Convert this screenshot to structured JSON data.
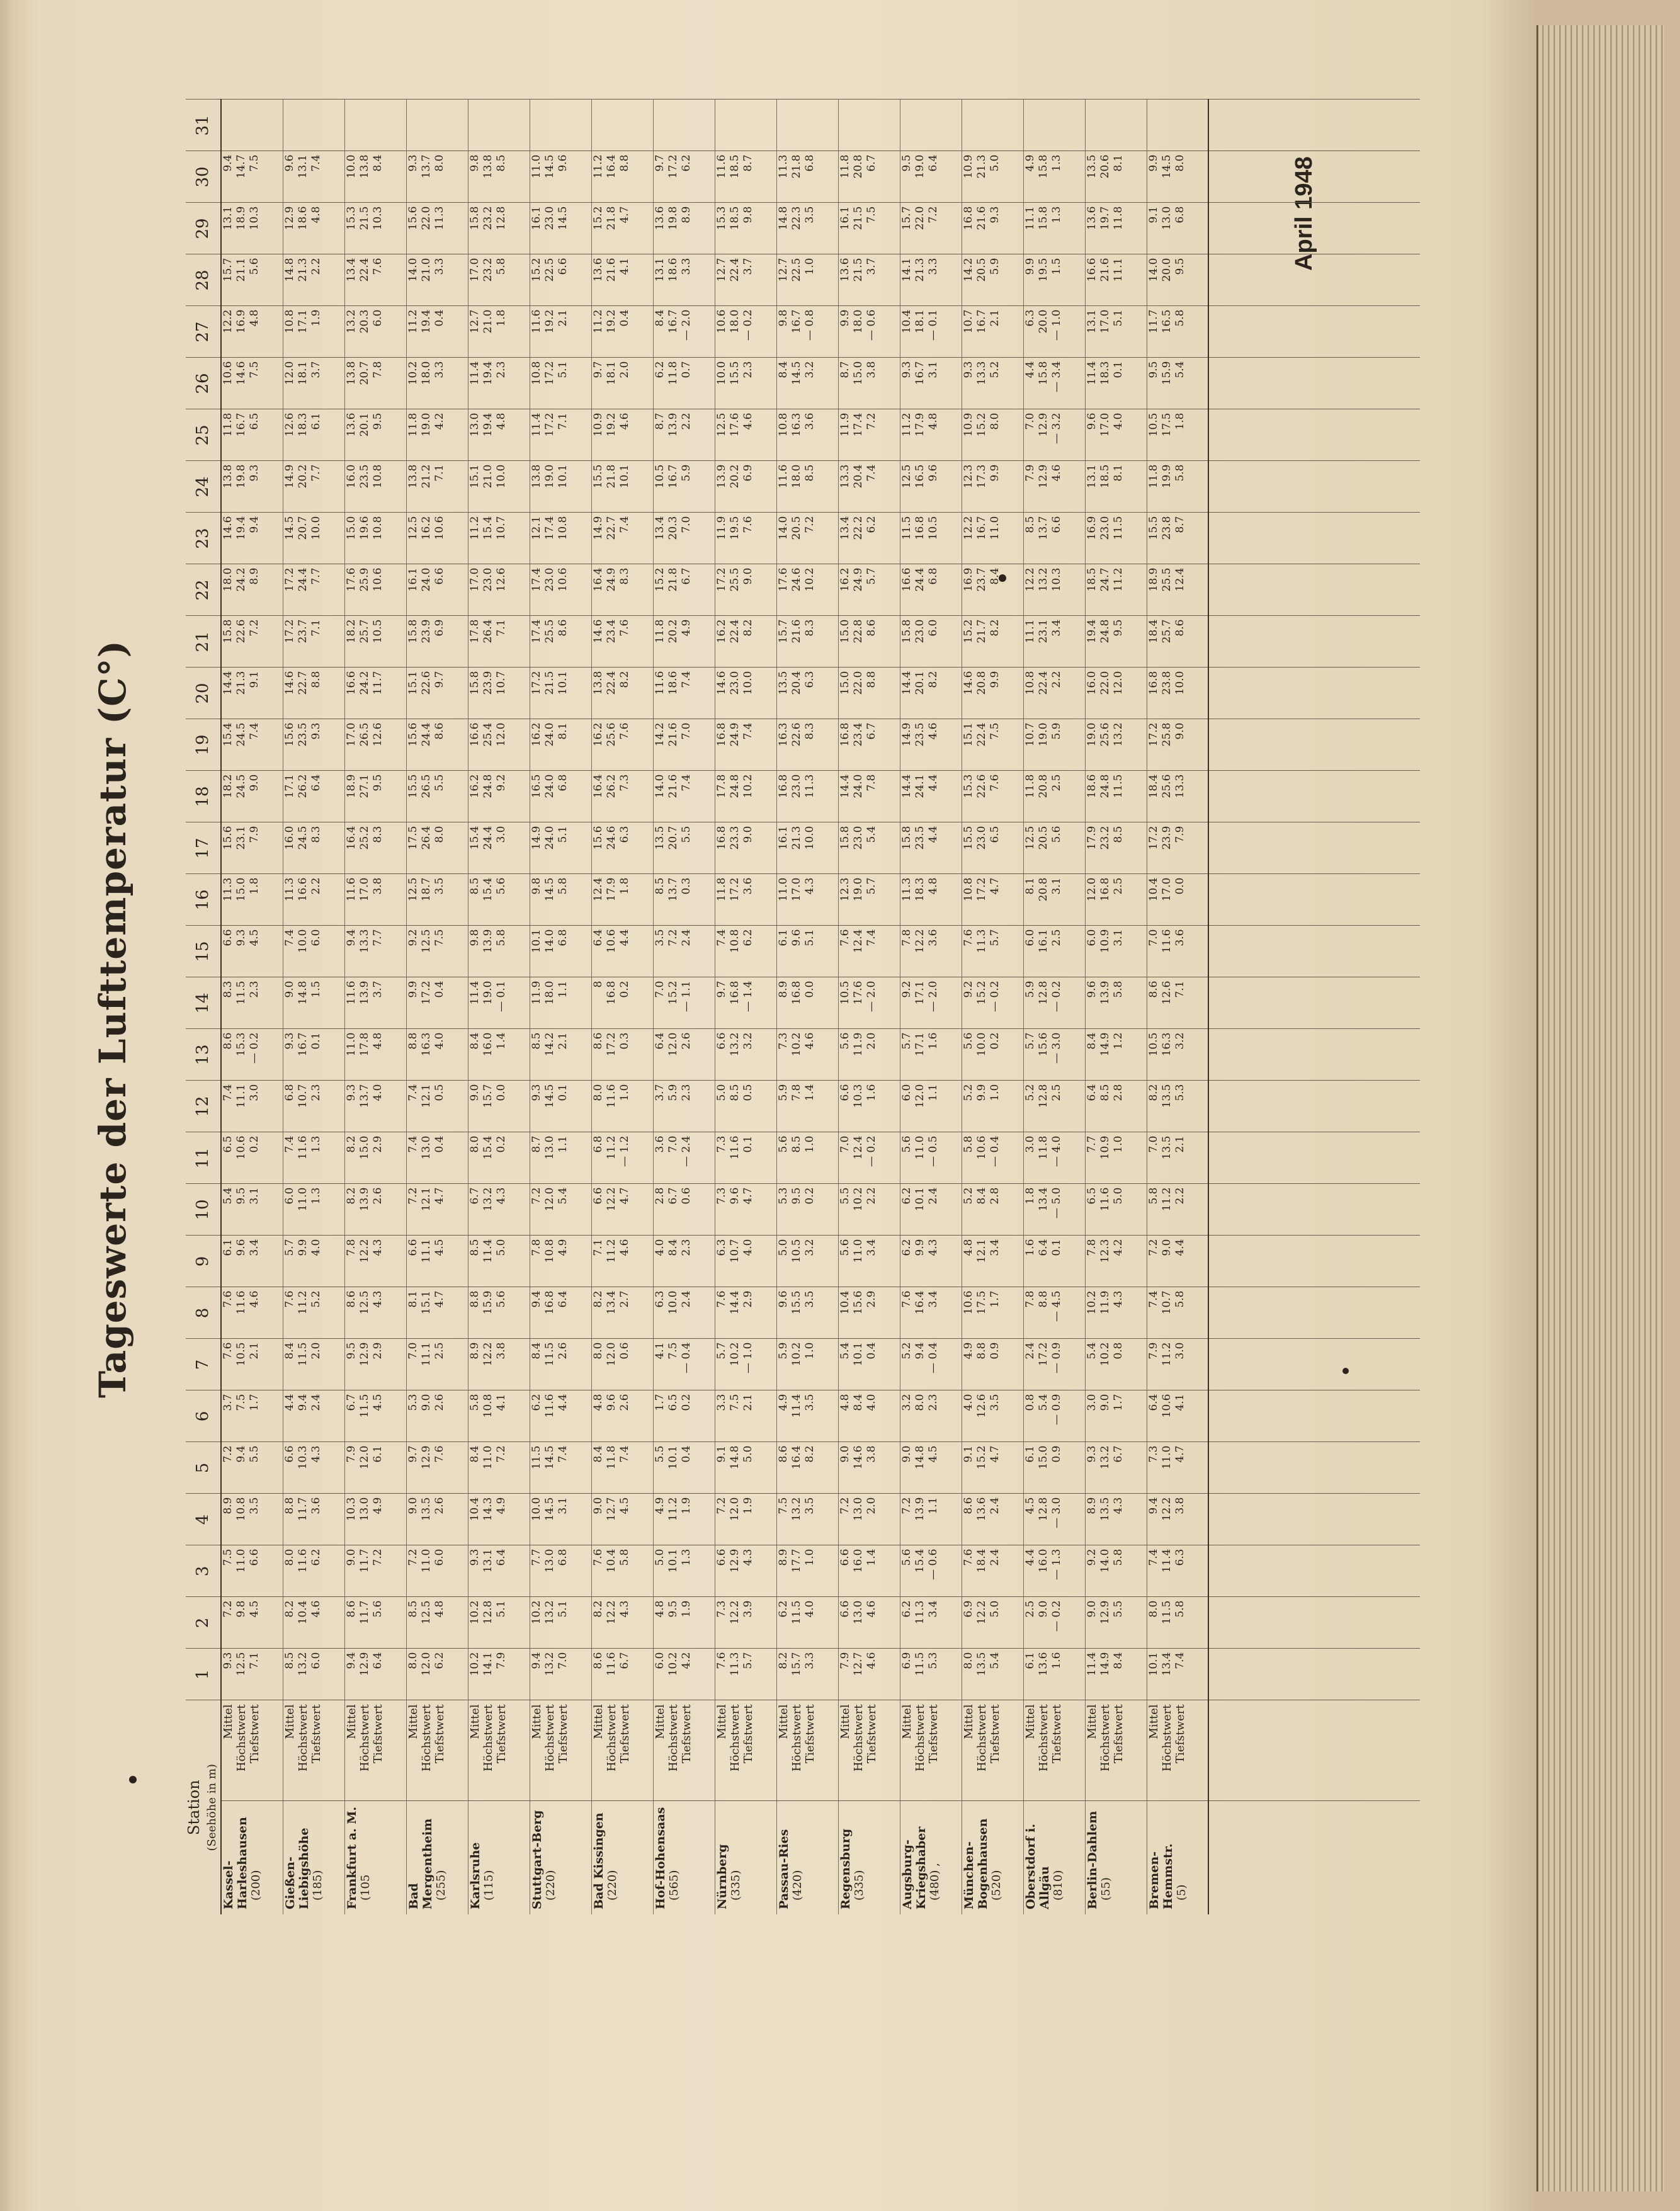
{
  "title": "Tageswerte der Lufttemperatur (C°)",
  "date_label": "April 1948",
  "header": {
    "station_label": "Station",
    "station_sub": "(Seehöhe in m)",
    "days": [
      "1",
      "2",
      "3",
      "4",
      "5",
      "6",
      "7",
      "8",
      "9",
      "10",
      "11",
      "12",
      "13",
      "14",
      "15",
      "16",
      "17",
      "18",
      "19",
      "20",
      "21",
      "22",
      "23",
      "24",
      "25",
      "26",
      "27",
      "28",
      "29",
      "30",
      "31"
    ]
  },
  "stations": [
    {
      "name": "Kassel-\nHarleshausen",
      "height": "(200)",
      "labels": [
        "Mittel",
        "Höchstwert",
        "Tiefstwert"
      ],
      "days": [
        "9.3\n12.5\n7.1",
        "7.2\n9.8\n4.5",
        "7.5\n11.0\n6.6",
        "8.9\n10.8\n3.5",
        "7.2\n9.4\n5.5",
        "3.7\n7.5\n1.7",
        "7.6\n10.5\n2.1",
        "7.6\n11.6\n4.6",
        "6.1\n9.6\n3.4",
        "5.4\n9.5\n3.1",
        "6.5\n10.6\n0.2",
        "7.4\n11.1\n3.0",
        "8.6\n15.3\n— 0.2",
        "8.3\n11.5\n2.3",
        "6.6\n9.3\n4.5",
        "11.3\n15.0\n1.8",
        "15.6\n23.1\n7.9",
        "18.2\n24.5\n9.0",
        "15.4\n24.5\n7.4",
        "14.4\n21.3\n9.1",
        "15.8\n22.6\n7.2",
        "18.0\n24.2\n8.9",
        "14.6\n19.4\n9.4",
        "13.8\n19.8\n9.3",
        "11.8\n16.7\n6.5",
        "10.6\n14.6\n7.5",
        "12.2\n16.9\n4.8",
        "15.7\n21.1\n5.6",
        "13.1\n18.9\n10.3",
        "9.4\n14.7\n7.5",
        ""
      ]
    },
    {
      "name": "Gießen-\nLiebigshöhe",
      "height": "(185)",
      "labels": [
        "Mittel",
        "Höchstwert",
        "Tiefstwert"
      ],
      "days": [
        "8.5\n13.2\n6.0",
        "8.2\n10.4\n4.6",
        "8.0\n11.6\n6.2",
        "8.8\n11.7\n3.6",
        "6.6\n10.3\n4.3",
        "4.4\n9.4\n2.4",
        "8.4\n11.5\n2.0",
        "7.6\n11.2\n5.2",
        "5.7\n9.9\n4.0",
        "6.0\n11.0\n1.3",
        "7.4\n11.6\n1.3",
        "6.8\n10.7\n2.3",
        "9.3\n16.7\n0.1",
        "9.0\n14.8\n1.5",
        "7.4\n10.0\n6.0",
        "11.3\n16.6\n2.2",
        "16.0\n24.5\n8.3",
        "17.1\n26.2\n6.4",
        "15.6\n23.5\n9.3",
        "14.6\n22.7\n8.8",
        "17.2\n23.7\n7.1",
        "17.2\n24.4\n7.7",
        "14.5\n20.7\n10.0",
        "14.9\n20.2\n7.7",
        "12.6\n18.3\n6.1",
        "12.0\n18.1\n3.7",
        "10.8\n17.1\n1.9",
        "14.8\n21.3\n2.2",
        "12.9\n18.6\n4.8",
        "9.6\n13.1\n7.4",
        ""
      ]
    },
    {
      "name": "Frankfurt a. M.",
      "height": "(105",
      "labels": [
        "Mittel",
        "Höchstwert",
        "Tiefstwert"
      ],
      "days": [
        "9.4\n12.9\n6.4",
        "8.6\n11.7\n5.6",
        "9.0\n11.7\n7.2",
        "10.3\n13.0\n4.9",
        "7.9\n12.0\n6.1",
        "6.7\n11.5\n4.5",
        "9.5\n12.9\n2.9",
        "8.6\n12.5\n4.3",
        "7.8\n12.2\n4.3",
        "8.2\n13.9\n2.6",
        "8.2\n15.0\n2.9",
        "9.3\n13.7\n4.0",
        "11.0\n17.8\n4.8",
        "11.6\n13.9\n3.7",
        "9.4\n13.3\n7.7",
        "11.6\n17.0\n3.8",
        "16.4\n25.2\n8.3",
        "18.9\n27.1\n9.5",
        "17.0\n26.5\n12.6",
        "16.6\n24.2\n11.7",
        "18.2\n25.7\n10.5",
        "17.6\n25.9\n10.6",
        "15.0\n19.6\n10.8",
        "16.0\n23.5\n10.8",
        "13.6\n20.1\n9.5",
        "13.8\n20.7\n7.8",
        "13.2\n20.3\n6.0",
        "13.4\n22.4\n7.6",
        "15.3\n21.5\n10.3",
        "10.0\n13.8\n8.4",
        ""
      ]
    },
    {
      "name": "Bad Mergentheim",
      "height": "(255)",
      "labels": [
        "Mittel",
        "Höchstwert",
        "Tiefstwert"
      ],
      "days": [
        "8.0\n12.0\n6.2",
        "8.5\n12.5\n4.8",
        "7.2\n11.0\n6.0",
        "9.0\n13.5\n2.6",
        "9.7\n12.9\n7.6",
        "5.3\n9.0\n2.6",
        "7.0\n11.1\n2.5",
        "8.1\n15.1\n4.7",
        "6.6\n11.1\n4.5",
        "7.2\n12.1\n4.7",
        "7.4\n13.0\n0.4",
        "7.4\n12.1\n0.5",
        "8.8\n16.3\n4.0",
        "9.9\n17.2\n0.4",
        "9.2\n12.5\n7.5",
        "12.5\n18.7\n3.5",
        "17.5\n26.4\n8.0",
        "15.5\n26.5\n5.5",
        "15.6\n24.4\n8.6",
        "15.1\n22.6\n9.7",
        "15.8\n23.9\n6.9",
        "16.1\n24.0\n6.6",
        "12.5\n16.2\n10.6",
        "13.8\n21.2\n7.1",
        "11.8\n19.0\n4.2",
        "10.2\n18.0\n3.3",
        "11.2\n19.4\n0.4",
        "14.0\n21.0\n3.3",
        "15.6\n22.0\n11.3",
        "9.3\n13.7\n8.0",
        ""
      ]
    },
    {
      "name": "Karlsruhe",
      "height": "(115)",
      "labels": [
        "Mittel",
        "Höchstwert",
        "Tiefstwert"
      ],
      "days": [
        "10.2\n14.1\n7.9",
        "10.2\n12.8\n5.1",
        "9.3\n13.1\n6.4",
        "10.4\n14.3\n4.9",
        "8.4\n11.0\n7.2",
        "5.8\n10.8\n4.1",
        "8.9\n12.2\n3.8",
        "8.8\n15.9\n5.6",
        "8.5\n11.4\n5.0",
        "6.7\n13.2\n4.3",
        "8.0\n15.4\n0.2",
        "9.0\n15.7\n0.0",
        "8.4\n16.0\n1.4",
        "11.4\n19.0\n— 0.1",
        "9.8\n13.9\n5.8",
        "8.5\n15.4\n5.6",
        "15.4\n24.4\n3.0",
        "16.2\n24.8\n9.2",
        "16.6\n25.4\n12.0",
        "15.8\n23.9\n10.7",
        "17.8\n26.4\n7.1",
        "17.0\n23.0\n12.6",
        "11.2\n15.4\n10.7",
        "15.1\n21.0\n10.0",
        "13.0\n19.4\n4.8",
        "11.4\n19.4\n2.3",
        "12.7\n21.0\n1.8",
        "17.0\n23.2\n5.8",
        "15.8\n23.2\n12.8",
        "9.8\n13.8\n8.5",
        ""
      ]
    },
    {
      "name": "Stuttgart-Berg",
      "height": "(220)",
      "labels": [
        "Mittel",
        "Höchstwert",
        "Tiefstwert"
      ],
      "days": [
        "9.4\n13.2\n7.0",
        "10.2\n13.2\n5.1",
        "7.7\n13.0\n6.8",
        "10.0\n14.5\n3.1",
        "11.5\n14.5\n7.4",
        "6.2\n11.6\n4.4",
        "8.4\n11.5\n2.6",
        "9.4\n16.8\n6.4",
        "7.8\n10.8\n4.9",
        "7.2\n12.0\n5.4",
        "8.7\n13.0\n1.1",
        "9.3\n14.5\n0.1",
        "8.5\n14.2\n2.1",
        "11.9\n18.0\n1.1",
        "10.1\n14.0\n6.8",
        "9.8\n14.5\n5.8",
        "14.9\n24.0\n5.1",
        "16.5\n24.0\n6.8",
        "16.2\n24.0\n8.1",
        "17.2\n21.5\n10.1",
        "17.4\n25.5\n8.6",
        "17.4\n23.0\n10.6",
        "12.1\n17.4\n10.8",
        "13.8\n19.0\n10.1",
        "11.4\n17.2\n7.1",
        "10.8\n17.2\n5.1",
        "11.6\n19.2\n2.1",
        "15.2\n22.5\n6.6",
        "16.1\n23.0\n14.5",
        "11.0\n14.5\n9.6",
        ""
      ]
    },
    {
      "name": "Bad Kissingen",
      "height": "(220)",
      "labels": [
        "Mittel",
        "Höchstwert",
        "Tiefstwert"
      ],
      "days": [
        "8.6\n11.6\n6.7",
        "8.2\n12.2\n4.3",
        "7.6\n10.4\n5.8",
        "9.0\n12.7\n4.5",
        "8.4\n11.8\n7.4",
        "4.8\n9.6\n2.6",
        "8.0\n12.0\n0.6",
        "8.2\n13.4\n2.7",
        "7.1\n11.2\n4.6",
        "6.6\n12.2\n4.7",
        "6.8\n11.2\n— 1.2",
        "8.0\n11.6\n1.0",
        "8.6\n17.2\n0.3",
        "8\n16.8\n0.2",
        "6.4\n10.6\n4.4",
        "12.4\n17.9\n1.8",
        "15.6\n24.6\n6.3",
        "16.4\n26.2\n7.3",
        "16.2\n25.6\n7.6",
        "13.8\n22.4\n8.2",
        "14.6\n23.4\n7.6",
        "16.4\n24.9\n8.3",
        "14.9\n22.7\n7.4",
        "15.5\n21.8\n10.1",
        "10.9\n19.2\n4.6",
        "9.7\n18.1\n2.0",
        "11.2\n19.2\n0.4",
        "13.6\n21.6\n4.1",
        "15.2\n21.8\n4.7",
        "11.2\n16.4\n8.8",
        ""
      ]
    },
    {
      "name": "Hof-Hohensaas",
      "height": "(565)",
      "labels": [
        "Mittel",
        "Höchstwert",
        "Tiefstwert"
      ],
      "days": [
        "6.0\n10.2\n4.2",
        "4.8\n9.5\n1.9",
        "5.0\n10.1\n1.3",
        "4.9\n11.2\n1.9",
        "5.5\n10.1\n0.4",
        "1.7\n6.5\n0.2",
        "4.1\n7.5\n— 0.4",
        "6.3\n10.0\n2.4",
        "4.0\n8.4\n2.3",
        "2.8\n6.7\n0.6",
        "3.6\n7.0\n— 2.4",
        "3.7\n5.9\n2.3",
        "6.4\n12.0\n2.6",
        "7.0\n15.2\n— 1.1",
        "3.5\n7.2\n2.4",
        "8.5\n13.7\n0.3",
        "13.5\n20.7\n5.5",
        "14.0\n21.6\n7.4",
        "14.2\n21.6\n7.0",
        "11.6\n18.6\n7.4",
        "11.8\n20.2\n4.9",
        "15.2\n21.8\n6.7",
        "13.4\n20.3\n7.0",
        "10.5\n16.7\n5.9",
        "8.7\n13.9\n2.2",
        "6.2\n11.8\n0.7",
        "8.4\n16.7\n— 2.0",
        "13.1\n18.6\n3.3",
        "13.6\n19.8\n8.9",
        "9.7\n17.2\n6.2",
        ""
      ]
    },
    {
      "name": "Nürnberg",
      "height": "(335)",
      "labels": [
        "Mittel",
        "Höchstwert",
        "Tiefstwert"
      ],
      "days": [
        "7.6\n11.3\n5.7",
        "7.3\n12.2\n3.9",
        "6.6\n12.9\n4.3",
        "7.2\n12.0\n1.9",
        "9.1\n14.8\n5.0",
        "3.3\n7.5\n2.1",
        "5.7\n10.2\n— 1.0",
        "7.6\n14.4\n2.9",
        "6.3\n10.7\n4.0",
        "7.3\n9.6\n4.7",
        "7.3\n11.6\n0.1",
        "5.0\n8.5\n0.5",
        "6.6\n13.2\n3.2",
        "9.7\n16.8\n— 1.4",
        "7.4\n10.8\n6.2",
        "11.8\n17.2\n3.6",
        "16.8\n23.3\n9.0",
        "17.8\n24.8\n10.2",
        "16.8\n24.9\n7.4",
        "14.6\n23.0\n10.0",
        "16.2\n22.4\n8.2",
        "17.2\n25.5\n9.0",
        "11.9\n19.5\n7.6",
        "13.9\n20.2\n6.9",
        "12.5\n17.6\n4.6",
        "10.0\n15.5\n2.3",
        "10.6\n18.0\n— 0.2",
        "12.7\n22.4\n3.7",
        "15.3\n18.5\n9.8",
        "11.6\n18.5\n8.7",
        ""
      ]
    },
    {
      "name": "Passau-Ries",
      "height": "(420)",
      "labels": [
        "Mittel",
        "Höchstwert",
        "Tiefstwert"
      ],
      "days": [
        "8.2\n15.7\n3.3",
        "6.2\n11.5\n4.0",
        "8.9\n17.7\n1.0",
        "7.5\n13.2\n3.5",
        "8.6\n16.4\n8.2",
        "4.9\n11.4\n3.5",
        "5.9\n10.2\n1.0",
        "9.6\n15.5\n3.5",
        "5.0\n10.5\n3.2",
        "5.3\n9.5\n0.2",
        "5.6\n8.5\n1.0",
        "5.9\n7.8\n1.4",
        "7.3\n10.2\n4.6",
        "8.9\n16.8\n0.0",
        "6.1\n9.6\n5.1",
        "11.0\n17.0\n4.3",
        "16.1\n21.3\n10.0",
        "16.8\n23.0\n11.3",
        "16.3\n22.6\n8.3",
        "13.5\n20.4\n6.3",
        "15.7\n21.6\n8.3",
        "17.6\n24.6\n10.2",
        "14.0\n20.5\n7.2",
        "11.6\n18.0\n8.5",
        "10.8\n16.3\n3.6",
        "8.4\n14.5\n3.2",
        "9.8\n16.7\n— 0.8",
        "12.7\n22.5\n1.0",
        "14.8\n22.3\n3.5",
        "11.3\n21.8\n6.8",
        ""
      ]
    },
    {
      "name": "Regensburg",
      "height": "(335)",
      "labels": [
        "Mittel",
        "Höchstwert",
        "Tiefstwert"
      ],
      "days": [
        "7.9\n12.7\n4.6",
        "6.6\n13.0\n4.6",
        "6.6\n16.0\n1.4",
        "7.2\n13.0\n2.0",
        "9.0\n14.6\n3.8",
        "4.8\n8.4\n4.0",
        "5.4\n10.1\n0.4",
        "10.4\n15.6\n2.9",
        "5.6\n11.0\n3.4",
        "5.5\n10.2\n2.2",
        "7.0\n12.4\n— 0.2",
        "6.6\n10.3\n1.6",
        "5.6\n11.9\n2.0",
        "10.5\n17.6\n— 2.0",
        "7.6\n12.4\n7.4",
        "12.3\n19.0\n5.7",
        "15.8\n23.0\n5.4",
        "14.4\n24.0\n7.8",
        "16.8\n23.4\n6.7",
        "15.0\n22.0\n8.8",
        "15.0\n22.8\n8.6",
        "16.2\n24.9\n5.7",
        "13.4\n22.2\n6.2",
        "13.3\n20.4\n7.4",
        "11.9\n17.4\n7.2",
        "8.7\n15.0\n3.8",
        "9.9\n18.0\n— 0.6",
        "13.6\n21.5\n3.7",
        "16.1\n21.5\n7.5",
        "11.8\n20.8\n6.7",
        ""
      ]
    },
    {
      "name": "Augsburg-\nKriegshaber",
      "height": "(480) ,",
      "labels": [
        "Mittel",
        "Höchstwert",
        "Tiefstwert"
      ],
      "days": [
        "6.9\n11.5\n5.3",
        "6.2\n11.3\n3.4",
        "5.6\n15.4\n— 0.6",
        "7.2\n13.9\n1.1",
        "9.0\n14.8\n4.5",
        "3.2\n8.0\n2.3",
        "5.2\n9.4\n— 0.4",
        "7.6\n16.4\n3.4",
        "6.2\n9.9\n4.3",
        "6.2\n10.1\n2.4",
        "5.6\n11.0\n— 0.5",
        "6.0\n12.0\n1.1",
        "5.7\n17.1\n1.6",
        "9.2\n17.1\n— 2.0",
        "7.8\n12.2\n3.6",
        "11.3\n18.3\n4.8",
        "15.8\n23.5\n4.4",
        "14.4\n24.1\n4.4",
        "14.9\n23.5\n4.6",
        "14.4\n20.1\n8.2",
        "15.8\n23.0\n6.0",
        "16.6\n24.4\n6.8",
        "11.5\n16.8\n10.5",
        "12.5\n16.5\n9.6",
        "11.2\n17.9\n4.8",
        "9.3\n16.7\n3.1",
        "10.4\n18.1\n— 0.1",
        "14.1\n21.3\n3.3",
        "15.7\n22.0\n7.2",
        "9.5\n19.0\n6.4",
        ""
      ]
    },
    {
      "name": "München-\nBogenhausen",
      "height": "(520)",
      "labels": [
        "Mittel",
        "Höchstwert",
        "Tiefstwert"
      ],
      "days": [
        "8.0\n13.5\n5.4",
        "6.9\n12.2\n5.0",
        "7.6\n18.4\n2.4",
        "8.6\n13.6\n2.4",
        "9.1\n15.2\n4.7",
        "4.0\n12.6\n3.5",
        "4.9\n8.8\n0.9",
        "10.6\n17.5\n1.7",
        "4.8\n12.1\n3.4",
        "5.2\n8.4\n2.8",
        "5.8\n10.6\n— 0.4",
        "5.2\n9.9\n1.0",
        "5.6\n10.0\n0.2",
        "9.2\n15.2\n— 0.2",
        "7.6\n11.3\n5.7",
        "10.8\n17.2\n4.7",
        "15.5\n23.0\n6.5",
        "15.3\n22.6\n7.6",
        "15.1\n22.4\n7.5",
        "14.6\n20.8\n9.9",
        "15.2\n21.7\n8.2",
        "16.9\n23.7\n8.4",
        "12.2\n16.7\n11.0",
        "12.3\n17.3\n9.9",
        "10.9\n15.2\n8.0",
        "9.3\n13.3\n5.2",
        "10.7\n16.7\n2.1",
        "14.2\n20.5\n5.9",
        "16.8\n21.6\n9.3",
        "10.9\n21.3\n5.0",
        ""
      ]
    },
    {
      "name": "Oberstdorf i. Allgäu",
      "height": "(810)",
      "labels": [
        "Mittel",
        "Höchstwert",
        "Tiefstwert"
      ],
      "days": [
        "6.1\n13.6\n1.6",
        "2.5\n9.0\n— 0.2",
        "4.4\n16.0\n— 1.3",
        "4.5\n12.8\n— 3.0",
        "6.1\n15.0\n0.9",
        "0.8\n5.4\n— 0.9",
        "2.4\n17.2\n— 0.9",
        "7.8\n8.8\n— 4.5",
        "1.6\n6.4\n0.1",
        "1.8\n13.4\n— 5.0",
        "3.0\n11.8\n— 4.0",
        "5.2\n12.8\n2.5",
        "5.7\n15.6\n— 3.0",
        "5.9\n12.8\n— 0.2",
        "6.0\n16.1\n2.5",
        "8.1\n20.8\n3.1",
        "12.5\n20.5\n5.6",
        "11.8\n20.8\n2.5",
        "10.7\n19.0\n5.9",
        "10.8\n22.4\n2.2",
        "11.1\n23.1\n3.4",
        "12.2\n13.2\n10.3",
        "8.5\n13.7\n6.6",
        "7.9\n12.9\n4.6",
        "7.0\n12.9\n— 3.2",
        "4.4\n15.8\n— 3.4",
        "6.3\n20.0\n— 1.0",
        "9.9\n19.5\n1.5",
        "11.1\n15.8\n1.3",
        "4.9\n15.8\n1.3",
        ""
      ]
    },
    {
      "name": "Berlin-Dahlem",
      "height": "(55)",
      "labels": [
        "Mittel",
        "Höchstwert",
        "Tiefstwert"
      ],
      "days": [
        "11.4\n14.9\n8.4",
        "9.0\n12.9\n5.5",
        "9.2\n14.0\n5.8",
        "8.9\n13.5\n4.3",
        "9.3\n13.2\n6.7",
        "3.0\n9.0\n1.7",
        "5.4\n10.2\n0.8",
        "10.2\n11.9\n4.3",
        "7.8\n12.3\n4.2",
        "6.5\n11.6\n5.0",
        "7.7\n10.9\n1.0",
        "6.4\n8.5\n2.8",
        "8.4\n14.9\n1.2",
        "9.6\n13.9\n5.8",
        "6.0\n10.9\n3.1",
        "12.0\n16.8\n2.5",
        "17.9\n23.2\n8.5",
        "18.6\n24.8\n11.5",
        "19.0\n25.6\n13.2",
        "16.0\n22.0\n12.0",
        "19.4\n24.8\n9.5",
        "18.5\n24.7\n11.2",
        "16.9\n23.0\n11.5",
        "13.1\n18.5\n8.1",
        "9.6\n17.0\n4.0",
        "11.4\n18.3\n0.1",
        "13.1\n17.0\n5.1",
        "16.6\n21.6\n11.1",
        "13.6\n19.7\n11.8",
        "13.5\n20.6\n8.1",
        ""
      ]
    },
    {
      "name": "Bremen-Hemmstr.",
      "height": "(5)",
      "labels": [
        "Mittel",
        "Höchstwert",
        "Tiefstwert"
      ],
      "days": [
        "10.1\n13.4\n7.4",
        "8.0\n11.5\n5.8",
        "7.4\n11.4\n6.3",
        "9.4\n12.2\n3.8",
        "7.3\n11.0\n4.7",
        "6.4\n10.6\n4.1",
        "7.9\n11.2\n3.0",
        "7.4\n10.7\n5.8",
        "7.2\n9.0\n4.4",
        "5.8\n11.2\n2.2",
        "7.0\n13.5\n2.1",
        "8.2\n13.5\n5.3",
        "10.5\n16.3\n3.2",
        "8.6\n12.6\n7.1",
        "7.0\n11.6\n3.6",
        "10.4\n17.0\n0.0",
        "17.2\n23.9\n7.9",
        "18.4\n25.6\n13.3",
        "17.2\n25.8\n9.0",
        "16.8\n23.8\n10.0",
        "18.4\n25.7\n8.6",
        "18.9\n25.5\n12.4",
        "15.5\n23.8\n8.7",
        "11.8\n19.9\n5.8",
        "10.5\n17.5\n1.8",
        "9.5\n15.9\n5.4",
        "11.7\n16.5\n5.8",
        "14.0\n20.0\n9.5",
        "9.1\n13.0\n6.8",
        "9.9\n14.5\n8.0",
        ""
      ]
    }
  ]
}
